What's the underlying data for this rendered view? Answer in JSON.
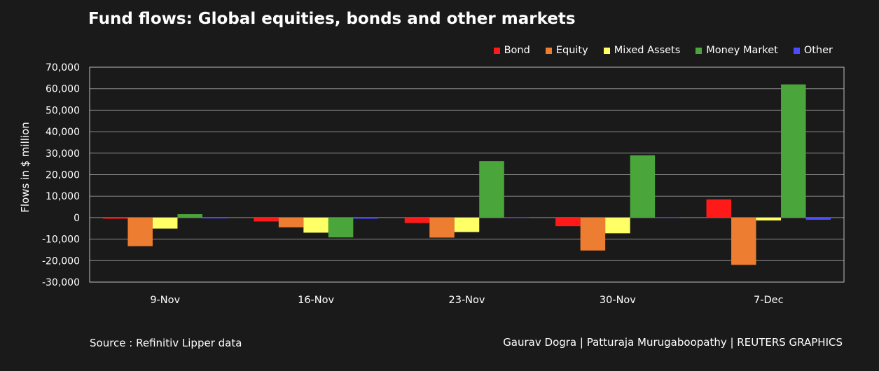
{
  "chart_data": {
    "type": "bar",
    "title": "Fund flows: Global equities, bonds and other markets",
    "ylabel": "Flows in $ million",
    "xlabel": "",
    "categories": [
      "9-Nov",
      "16-Nov",
      "23-Nov",
      "30-Nov",
      "7-Dec"
    ],
    "series": [
      {
        "name": "Bond",
        "color": "#ff1a1a",
        "values": [
          -500,
          -1800,
          -2500,
          -4000,
          8500
        ]
      },
      {
        "name": "Equity",
        "color": "#ed7d31",
        "values": [
          -13300,
          -4500,
          -9300,
          -15300,
          -22000
        ]
      },
      {
        "name": "Mixed Assets",
        "color": "#ffff66",
        "values": [
          -5100,
          -7000,
          -6700,
          -7300,
          -1300
        ]
      },
      {
        "name": "Money Market",
        "color": "#4aa63a",
        "values": [
          1600,
          -9200,
          26300,
          29000,
          62000
        ]
      },
      {
        "name": "Other",
        "color": "#4b4bff",
        "values": [
          -300,
          -500,
          200,
          200,
          -1000
        ]
      }
    ],
    "yticks": [
      -30000,
      -20000,
      -10000,
      0,
      10000,
      20000,
      30000,
      40000,
      50000,
      60000,
      70000
    ],
    "ytick_labels": [
      "-30,000",
      "-20,000",
      "-10,000",
      "0",
      "10,000",
      "20,000",
      "30,000",
      "40,000",
      "50,000",
      "60,000",
      "70,000"
    ],
    "ylim": [
      -30000,
      70000
    ],
    "grid": true,
    "legend_position": "top-right"
  },
  "footer": {
    "source": "Source : Refinitiv Lipper data",
    "credit": "Gaurav Dogra | Patturaja Murugaboopathy | REUTERS GRAPHICS"
  }
}
